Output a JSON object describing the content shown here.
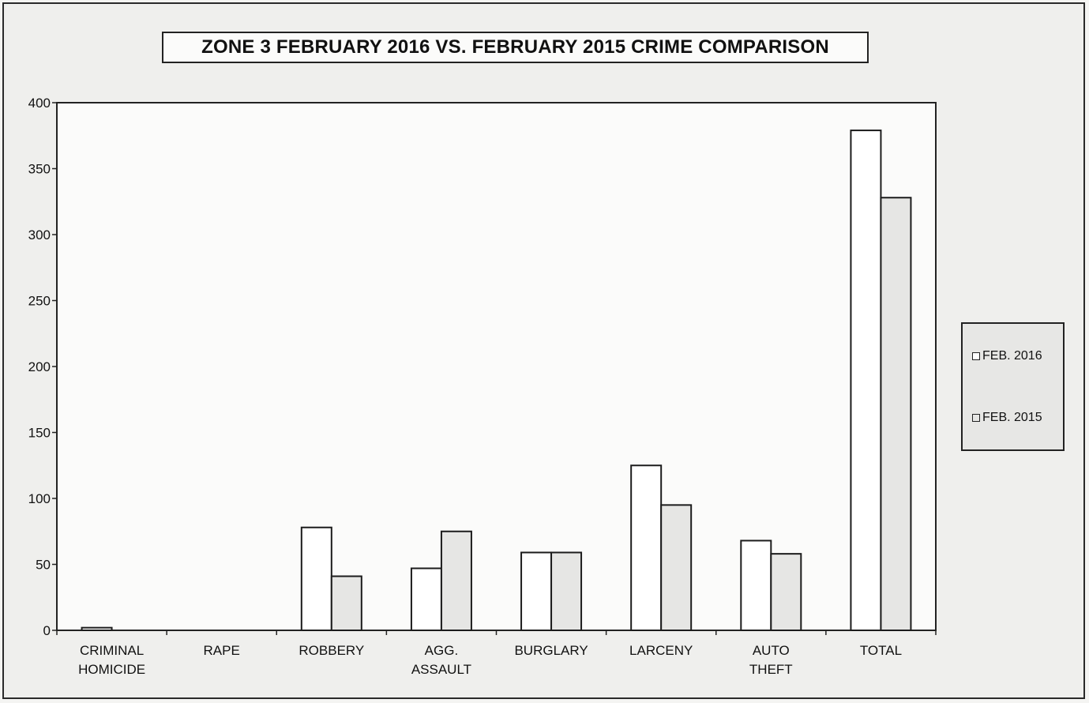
{
  "chart_data": {
    "type": "bar",
    "title": "ZONE 3  FEBRUARY 2016 VS. FEBRUARY 2015 CRIME COMPARISON",
    "xlabel": "",
    "ylabel": "",
    "ylim": [
      0,
      400
    ],
    "yticks": [
      0,
      50,
      100,
      150,
      200,
      250,
      300,
      350,
      400
    ],
    "categories": [
      [
        "CRIMINAL",
        "HOMICIDE"
      ],
      [
        "RAPE"
      ],
      [
        "ROBBERY"
      ],
      [
        "AGG.",
        "ASSAULT"
      ],
      [
        "BURGLARY"
      ],
      [
        "LARCENY"
      ],
      [
        "AUTO",
        "THEFT"
      ],
      [
        "TOTAL"
      ]
    ],
    "series": [
      {
        "name": "FEB. 2016",
        "color": "#ffffff",
        "values": [
          2,
          0,
          78,
          47,
          59,
          125,
          68,
          379
        ]
      },
      {
        "name": "FEB. 2015",
        "color": "#e6e6e4",
        "values": [
          0,
          0,
          41,
          75,
          59,
          95,
          58,
          328
        ]
      }
    ],
    "grid": false,
    "legend_position": "right"
  }
}
